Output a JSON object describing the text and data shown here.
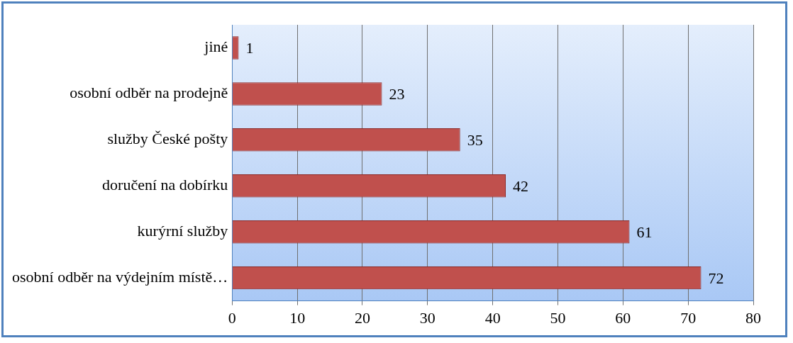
{
  "chart_data": {
    "type": "bar",
    "orientation": "horizontal",
    "categories": [
      "jiné",
      "osobní odběr na prodejně",
      "služby České pošty",
      "doručení na dobírku",
      "kurýrní služby",
      "osobní odběr na výdejním místě…"
    ],
    "values": [
      1,
      23,
      35,
      42,
      61,
      72
    ],
    "color": "#c0504d",
    "xlim": [
      0,
      80
    ],
    "xticks": [
      0,
      10,
      20,
      30,
      40,
      50,
      60,
      70,
      80
    ],
    "grid": "x",
    "data_labels": true,
    "legend": false
  }
}
